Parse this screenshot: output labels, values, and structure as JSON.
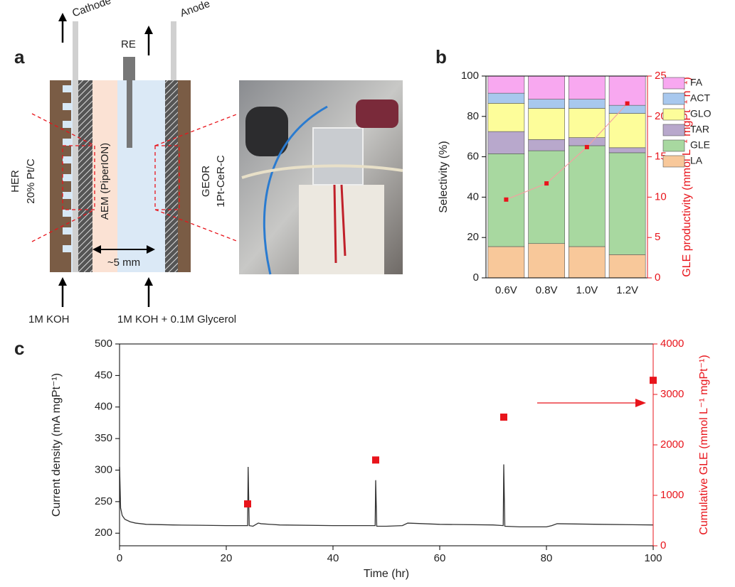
{
  "panel_labels": [
    "a",
    "b",
    "c"
  ],
  "diagram": {
    "cathode": "Cathode",
    "reference": "RE",
    "anode": "Anode",
    "her": "HER",
    "her_catalyst": "20% Pt/C",
    "membrane": "AEM (PiperION)",
    "geor": "GEOR",
    "geor_catalyst": "1Pt-CeR-C",
    "gap": "~5 mm",
    "cathode_feed": "1M KOH",
    "anode_feed": "1M KOH + 0.1M Glycerol"
  },
  "chart_data": [
    {
      "type": "bar",
      "stacked": true,
      "categories": [
        "0.6V",
        "0.8V",
        "1.0V",
        "1.2V"
      ],
      "ylabel": "Selectivity (%)",
      "y2label": "GLE productivity (mmol L⁻¹ mgPt⁻¹ h⁻¹)",
      "ylim": [
        0,
        100
      ],
      "yticks": [
        0,
        20,
        40,
        60,
        80,
        100
      ],
      "y2lim": [
        0,
        25
      ],
      "y2ticks": [
        0,
        5,
        10,
        15,
        20,
        25
      ],
      "y2color": "#e8141b",
      "legend": "right",
      "series": [
        {
          "name": "LA",
          "color": "#f8c89a",
          "values": [
            15.5,
            17,
            15.5,
            11.5
          ]
        },
        {
          "name": "GLE",
          "color": "#a8d8a0",
          "values": [
            46,
            46,
            50,
            50.5
          ]
        },
        {
          "name": "TAR",
          "color": "#b8a8cc",
          "values": [
            11,
            5.5,
            4,
            2.5
          ]
        },
        {
          "name": "GLO",
          "color": "#fdfd9a",
          "values": [
            14,
            15.5,
            14.5,
            17
          ]
        },
        {
          "name": "ACT",
          "color": "#a8c8ee",
          "values": [
            5,
            4.5,
            4.5,
            4
          ]
        },
        {
          "name": "FA",
          "color": "#f8a8f0",
          "values": [
            8.5,
            11.5,
            11.5,
            14.5
          ]
        },
        {
          "type": "line",
          "axis": "y2",
          "color": "#e8141b",
          "line_color": "#f4a0a0",
          "values": [
            9.7,
            11.7,
            16.2,
            21.6
          ]
        }
      ]
    },
    {
      "type": "line",
      "xlabel": "Time (hr)",
      "ylabel": "Current density (mA mgPt⁻¹)",
      "y2label": "Cumulative GLE (mmol L⁻¹ mgPt⁻¹)",
      "xlim": [
        0,
        100
      ],
      "xticks": [
        0,
        20,
        40,
        60,
        80,
        100
      ],
      "ylim": [
        180,
        500
      ],
      "yticks": [
        200,
        250,
        300,
        350,
        400,
        450,
        500
      ],
      "y2lim": [
        0,
        4000
      ],
      "y2ticks": [
        0,
        1000,
        2000,
        3000,
        4000
      ],
      "y2color": "#e8141b",
      "series": [
        {
          "type": "line",
          "color": "#333333",
          "x": [
            0,
            0.2,
            0.5,
            1,
            2,
            3,
            5,
            10,
            15,
            20,
            24,
            24.1,
            24.3,
            25,
            26,
            26.5,
            30,
            40,
            47.9,
            48,
            48.2,
            50,
            53,
            54,
            60,
            70,
            71.9,
            72,
            72.2,
            75,
            80,
            81,
            82,
            90,
            100
          ],
          "values": [
            305,
            240,
            228,
            222,
            218,
            216,
            214,
            213,
            212.5,
            212,
            212,
            305,
            212,
            211,
            216,
            215,
            213,
            212,
            212,
            284,
            211,
            211,
            212,
            216,
            214,
            213,
            212,
            309,
            211,
            210,
            210,
            212,
            215,
            214,
            213
          ]
        },
        {
          "type": "scatter",
          "axis": "y2",
          "color": "#e8141b",
          "x": [
            24,
            48,
            72,
            100
          ],
          "values": [
            830,
            1700,
            2550,
            3280
          ]
        }
      ]
    }
  ]
}
